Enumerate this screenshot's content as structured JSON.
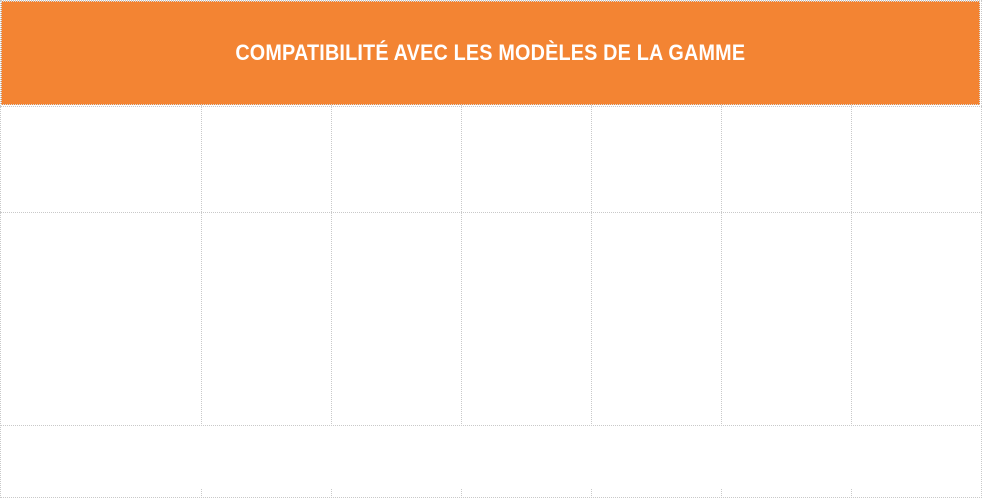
{
  "header": {
    "title": "COMPATIBILITÉ AVEC LES MODÈLES DE LA GAMME",
    "background_color": "#f38433",
    "text_color": "#ffffff"
  },
  "table": {
    "columns": 7,
    "rows": [
      [
        "",
        "",
        "",
        "",
        "",
        "",
        ""
      ],
      [
        "",
        "",
        "",
        "",
        "",
        "",
        ""
      ],
      [
        ""
      ]
    ]
  }
}
